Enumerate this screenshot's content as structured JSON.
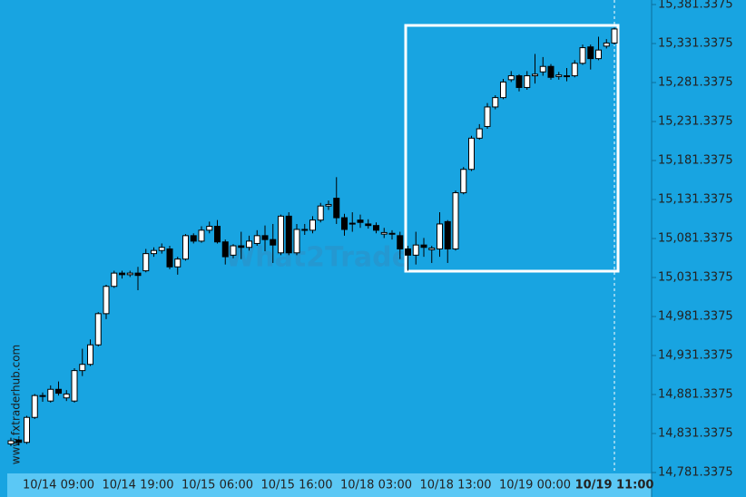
{
  "chart_data": {
    "type": "candlestick",
    "watermark": "What2Trade",
    "source": "www.fxtraderhub.com",
    "categories": [
      null,
      null,
      null,
      null,
      null,
      null,
      "10/14 09:00",
      null,
      null,
      null,
      null,
      null,
      null,
      null,
      null,
      null,
      "10/14 19:00",
      null,
      null,
      null,
      null,
      null,
      null,
      null,
      null,
      null,
      "10/15 06:00",
      null,
      null,
      null,
      null,
      null,
      null,
      null,
      null,
      null,
      "10/15 16:00",
      null,
      null,
      null,
      null,
      null,
      null,
      null,
      null,
      null,
      "10/18 03:00",
      null,
      null,
      null,
      null,
      null,
      null,
      null,
      null,
      null,
      "10/18 13:00",
      null,
      null,
      null,
      null,
      null,
      null,
      null,
      null,
      null,
      "10/19 00:00",
      null,
      null,
      null,
      null,
      null,
      null,
      null,
      null,
      null,
      "10/19 11:00"
    ],
    "open": [
      14818,
      14823,
      14820,
      14852,
      14879,
      14873,
      14888,
      14877,
      14873,
      14912,
      14920,
      14945,
      14985,
      15020,
      15037,
      15035,
      15037,
      15040,
      15062,
      15066,
      15068,
      15045,
      15055,
      15085,
      15078,
      15092,
      15097,
      15077,
      15060,
      15072,
      15070,
      15075,
      15085,
      15080,
      15063,
      15110,
      15063,
      15093,
      15092,
      15105,
      15123,
      15133,
      15108,
      15101,
      15105,
      15100,
      15098,
      15087,
      15088,
      15085,
      15068,
      15060,
      15073,
      15067,
      15068,
      15103,
      15068,
      15140,
      15170,
      15210,
      15225,
      15250,
      15262,
      15285,
      15290,
      15275,
      15290,
      15295,
      15302,
      15289,
      15289,
      15290,
      15306,
      15327,
      15312,
      15328,
      15332
    ],
    "high": [
      14826,
      14825,
      14854,
      14882,
      14884,
      14893,
      14898,
      14887,
      14915,
      14940,
      14952,
      14987,
      15022,
      15040,
      15040,
      15040,
      15045,
      15068,
      15070,
      15075,
      15072,
      15058,
      15087,
      15088,
      15097,
      15103,
      15105,
      15080,
      15074,
      15090,
      15085,
      15092,
      15098,
      15100,
      15112,
      15115,
      15100,
      15100,
      15110,
      15127,
      15130,
      15160,
      15113,
      15115,
      15112,
      15106,
      15102,
      15095,
      15092,
      15090,
      15072,
      15090,
      15082,
      15072,
      15115,
      15105,
      15143,
      15173,
      15213,
      15228,
      15255,
      15265,
      15286,
      15296,
      15292,
      15296,
      15318,
      15314,
      15305,
      15295,
      15300,
      15310,
      15330,
      15330,
      15340,
      15337,
      15352
    ],
    "low": [
      14815,
      14816,
      14818,
      14850,
      14872,
      14871,
      14880,
      14873,
      14871,
      14905,
      14918,
      14943,
      14978,
      15018,
      15030,
      15032,
      15015,
      15038,
      15058,
      15062,
      15042,
      15035,
      15053,
      15075,
      15076,
      15088,
      15075,
      15048,
      15056,
      15055,
      15066,
      15072,
      15065,
      15050,
      15060,
      15060,
      15060,
      15086,
      15088,
      15102,
      15118,
      15100,
      15085,
      15090,
      15095,
      15094,
      15088,
      15082,
      15080,
      15055,
      15040,
      15048,
      15058,
      15050,
      15058,
      15050,
      15066,
      15138,
      15168,
      15208,
      15222,
      15247,
      15260,
      15282,
      15270,
      15272,
      15280,
      15290,
      15285,
      15285,
      15283,
      15288,
      15304,
      15298,
      15310,
      15325,
      15330
    ],
    "close": [
      14822,
      14820,
      14852,
      14880,
      14880,
      14888,
      14883,
      14882,
      14912,
      14920,
      14945,
      14985,
      15020,
      15037,
      15035,
      15037,
      15034,
      15062,
      15066,
      15070,
      15045,
      15055,
      15085,
      15078,
      15092,
      15097,
      15077,
      15058,
      15072,
      15070,
      15078,
      15085,
      15080,
      15073,
      15110,
      15063,
      15093,
      15092,
      15105,
      15123,
      15125,
      15108,
      15093,
      15100,
      15102,
      15098,
      15092,
      15089,
      15087,
      15068,
      15060,
      15073,
      15070,
      15069,
      15100,
      15068,
      15140,
      15170,
      15210,
      15222,
      15250,
      15262,
      15282,
      15290,
      15275,
      15290,
      15292,
      15302,
      15288,
      15291,
      15290,
      15306,
      15326,
      15312,
      15323,
      15332,
      15350
    ],
    "up_color": "#ffffff",
    "down_color": "#000000",
    "ylim": [
      14780.17,
      15387.15
    ],
    "yticks": [
      {
        "value": 15381.3375,
        "label": "15,381.3375"
      },
      {
        "value": 15331.3375,
        "label": "15,331.3375"
      },
      {
        "value": 15281.3375,
        "label": "15,281.3375"
      },
      {
        "value": 15231.3375,
        "label": "15,231.3375"
      },
      {
        "value": 15181.3375,
        "label": "15,181.3375"
      },
      {
        "value": 15131.3375,
        "label": "15,131.3375"
      },
      {
        "value": 15081.3375,
        "label": "15,081.3375"
      },
      {
        "value": 15031.3375,
        "label": "15,031.3375"
      },
      {
        "value": 14981.3375,
        "label": "14,981.3375"
      },
      {
        "value": 14931.3375,
        "label": "14,931.3375"
      },
      {
        "value": 14881.3375,
        "label": "14,881.3375"
      },
      {
        "value": 14831.3375,
        "label": "14,831.3375"
      },
      {
        "value": 14781.3375,
        "label": "14,781.3375"
      }
    ]
  }
}
